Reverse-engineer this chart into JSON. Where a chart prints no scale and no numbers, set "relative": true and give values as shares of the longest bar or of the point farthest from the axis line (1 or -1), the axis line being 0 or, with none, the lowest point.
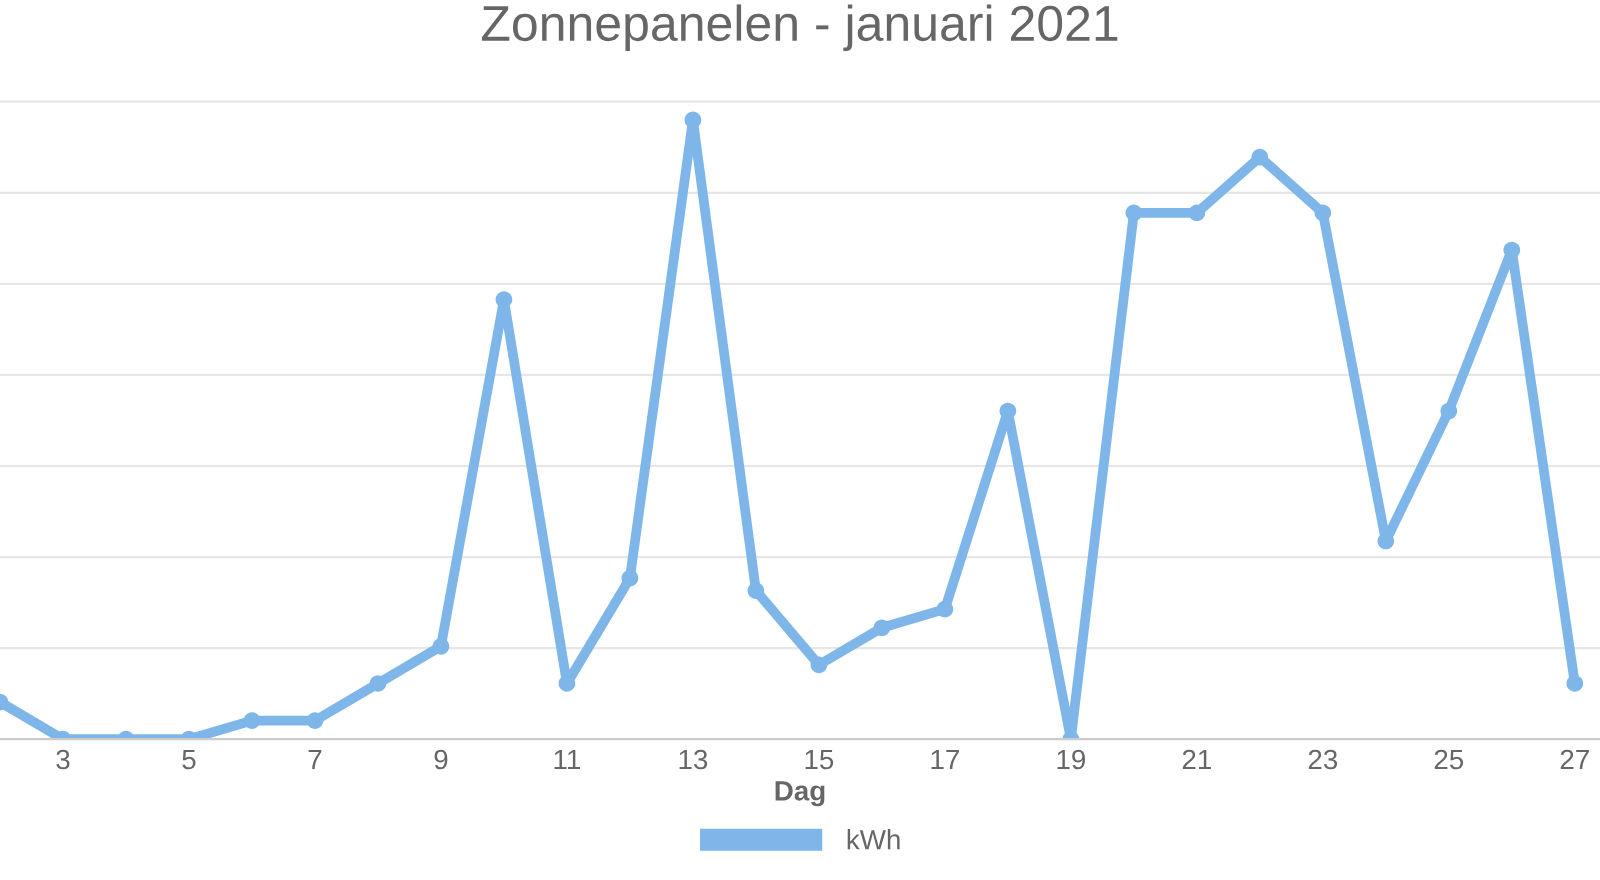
{
  "chart_data": {
    "type": "line",
    "title": "Zonnepanelen - januari 2021",
    "xlabel": "Dag",
    "categories": [
      null,
      "3",
      null,
      "5",
      null,
      "7",
      null,
      "9",
      null,
      "11",
      null,
      "13",
      null,
      "15",
      null,
      "17",
      null,
      "19",
      null,
      "21",
      null,
      "23",
      null,
      "25",
      null,
      "27"
    ],
    "series": [
      {
        "name": "kWh",
        "color": "#7eb6ea",
        "values": [
          0.06,
          0,
          0,
          0,
          0.03,
          0.03,
          0.09,
          0.15,
          0.71,
          0.09,
          0.26,
          1,
          0.24,
          0.12,
          0.18,
          0.21,
          0.53,
          0,
          0.85,
          0.85,
          0.94,
          0.85,
          0.32,
          0.53,
          0.79,
          0.09
        ]
      }
    ],
    "relative": true,
    "grid": "y",
    "legend": "bottom",
    "marker": "circle",
    "line_style": "solid"
  }
}
